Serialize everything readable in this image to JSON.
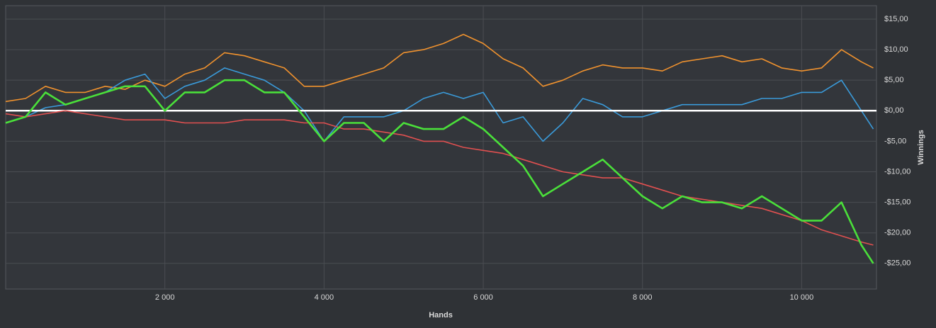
{
  "chart_data": {
    "type": "line",
    "xlabel": "Hands",
    "ylabel": "Winnings",
    "x": [
      0,
      250,
      500,
      750,
      1000,
      1250,
      1500,
      1750,
      2000,
      2250,
      2500,
      2750,
      3000,
      3250,
      3500,
      3750,
      4000,
      4250,
      4500,
      4750,
      5000,
      5250,
      5500,
      5750,
      6000,
      6250,
      6500,
      6750,
      7000,
      7250,
      7500,
      7750,
      8000,
      8250,
      8500,
      8750,
      9000,
      9250,
      9500,
      9750,
      10000,
      10250,
      10500,
      10750,
      10900
    ],
    "series": [
      {
        "color": "#f0922e",
        "values": [
          1.5,
          2,
          4,
          3,
          3,
          4,
          3.5,
          5,
          4,
          6,
          7,
          9.5,
          9,
          8,
          7,
          4,
          4,
          5,
          6,
          7,
          9.5,
          10,
          11,
          12.5,
          11,
          8.5,
          7,
          4,
          5,
          6.5,
          7.5,
          7,
          7,
          6.5,
          8,
          8.5,
          9,
          8,
          8.5,
          7,
          6.5,
          7,
          10,
          8,
          7
        ]
      },
      {
        "color": "#3a9ad9",
        "values": [
          -2,
          -1,
          0.5,
          1,
          2,
          3,
          5,
          6,
          2,
          4,
          5,
          7,
          6,
          5,
          3,
          0,
          -5,
          -1,
          -1,
          -1,
          0,
          2,
          3,
          2,
          3,
          -2,
          -1,
          -5,
          -2,
          2,
          1,
          -1,
          -1,
          0,
          1,
          1,
          1,
          1,
          2,
          2,
          3,
          3,
          5,
          0,
          -3
        ]
      },
      {
        "color": "#e05050",
        "values": [
          -0.5,
          -1,
          -0.5,
          0,
          -0.5,
          -1,
          -1.5,
          -1.5,
          -1.5,
          -2,
          -2,
          -2,
          -1.5,
          -1.5,
          -1.5,
          -2,
          -2,
          -3,
          -3,
          -3.5,
          -4,
          -5,
          -5,
          -6,
          -6.5,
          -7,
          -8,
          -9,
          -10,
          -10.5,
          -11,
          -11,
          -12,
          -13,
          -14,
          -14.5,
          -15,
          -15.5,
          -16,
          -17,
          -18,
          -19.5,
          -20.5,
          -21.5,
          -22
        ]
      },
      {
        "color": "#4ae03a",
        "values": [
          -2,
          -1,
          3,
          1,
          2,
          3,
          4,
          4,
          0,
          3,
          3,
          5,
          5,
          3,
          3,
          -1,
          -5,
          -2,
          -2,
          -5,
          -2,
          -3,
          -3,
          -1,
          -3,
          -6,
          -9,
          -14,
          -12,
          -10,
          -8,
          -11,
          -14,
          -16,
          -14,
          -15,
          -15,
          -16,
          -14,
          -16,
          -18,
          -18,
          -15,
          -22,
          -25
        ]
      }
    ],
    "xlim": [
      0,
      10940
    ],
    "xticks": [
      {
        "value": 2000,
        "label": "2 000"
      },
      {
        "value": 4000,
        "label": "4 000"
      },
      {
        "value": 6000,
        "label": "6 000"
      },
      {
        "value": 8000,
        "label": "8 000"
      },
      {
        "value": 10000,
        "label": "10 000"
      }
    ],
    "ylim": [
      -29.2,
      17.2
    ],
    "yticks": [
      {
        "value": -25,
        "label": "-$25,00"
      },
      {
        "value": -20,
        "label": "-$20,00"
      },
      {
        "value": -15,
        "label": "-$15,00"
      },
      {
        "value": -10,
        "label": "-$10,00"
      },
      {
        "value": -5,
        "label": "-$5,00"
      },
      {
        "value": 0,
        "label": "$0,00"
      },
      {
        "value": 5,
        "label": "$5,00"
      },
      {
        "value": 10,
        "label": "$10,00"
      },
      {
        "value": 15,
        "label": "$15,00"
      }
    ],
    "grid": true
  }
}
